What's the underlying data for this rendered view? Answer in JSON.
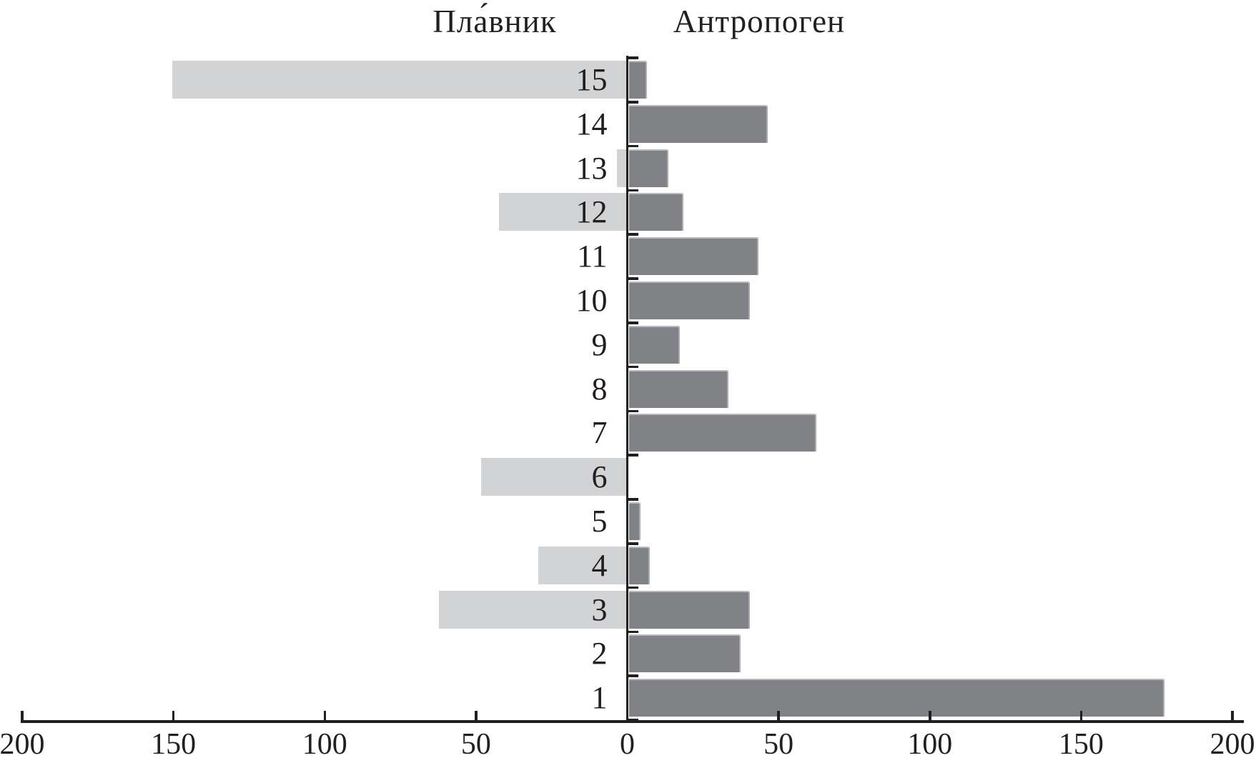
{
  "chart_data": {
    "type": "bar",
    "orientation": "diverging-horizontal",
    "title_left": "Пла́вник",
    "title_right": "Антропоген",
    "categories": [
      "15",
      "14",
      "13",
      "12",
      "11",
      "10",
      "9",
      "8",
      "7",
      "6",
      "5",
      "4",
      "3",
      "2",
      "1"
    ],
    "series": [
      {
        "name": "Пла́вник",
        "side": "left",
        "color": "#d1d3d4",
        "values": [
          150,
          0,
          3,
          42,
          0,
          0,
          0,
          0,
          0,
          48,
          0,
          29,
          62,
          0,
          0
        ]
      },
      {
        "name": "Антропоген",
        "side": "right",
        "color": "#808285",
        "values": [
          6,
          46,
          13,
          18,
          43,
          40,
          17,
          33,
          62,
          0,
          4,
          7,
          40,
          37,
          177
        ]
      }
    ],
    "x_axis": {
      "tick_values": [
        -200,
        -150,
        -100,
        -50,
        0,
        50,
        100,
        150,
        200
      ],
      "tick_labels": [
        "200",
        "150",
        "100",
        "50",
        "0",
        "50",
        "100",
        "150",
        "200"
      ],
      "max_abs": 200,
      "grid": false
    },
    "legend": "none",
    "colors": {
      "left_bar": "#d1d3d4",
      "right_bar": "#808285",
      "axis": "#231f20",
      "text": "#231f20",
      "background": "#ffffff"
    }
  }
}
